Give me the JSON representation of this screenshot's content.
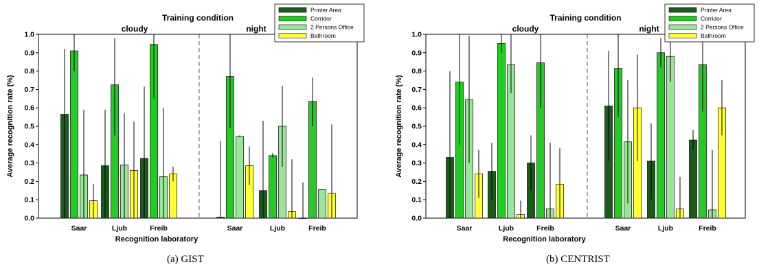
{
  "chart_data": [
    {
      "type": "bar",
      "title": "Training condition",
      "xlabel": "Recognition laboratory",
      "ylabel": "Average recognition rate (%)",
      "ylim": [
        0,
        1.0
      ],
      "yticks": [
        "0.0",
        "0.1",
        "0.2",
        "0.3",
        "0.4",
        "0.5",
        "0.6",
        "0.7",
        "0.8",
        "0.9",
        "1.0"
      ],
      "groups": [
        "cloudy",
        "night"
      ],
      "categories": [
        "Saar",
        "Ljub",
        "Freib",
        "Saar",
        "Ljub",
        "Freib"
      ],
      "legend_position": "top-right",
      "series": [
        {
          "name": "Printer Area",
          "color": "#1a5c1a",
          "values": [
            0.565,
            0.285,
            0.325,
            0.005,
            0.15,
            0.0
          ],
          "errors": [
            [
              0.0,
              0.92
            ],
            [
              0.0,
              0.59
            ],
            [
              0.0,
              0.715
            ],
            [
              0.0,
              0.42
            ],
            [
              0.0,
              0.53
            ],
            [
              0.0,
              0.195
            ]
          ]
        },
        {
          "name": "Corridor",
          "color": "#22cc22",
          "values": [
            0.91,
            0.725,
            0.945,
            0.77,
            0.34,
            0.635
          ],
          "errors": [
            [
              0.8,
              1.0
            ],
            [
              0.45,
              0.98
            ],
            [
              0.65,
              1.0
            ],
            [
              0.49,
              1.0
            ],
            [
              0.33,
              0.355
            ],
            [
              0.5,
              0.765
            ]
          ]
        },
        {
          "name": "2 Persons Office",
          "color": "#99e699",
          "values": [
            0.235,
            0.29,
            0.225,
            0.445,
            0.5,
            0.155
          ],
          "errors": [
            [
              0.0,
              0.59
            ],
            [
              0.0,
              0.57
            ],
            [
              0.0,
              0.6
            ],
            [
              0.44,
              0.45
            ],
            [
              0.28,
              0.72
            ],
            [
              0.155,
              0.155
            ]
          ]
        },
        {
          "name": "Bathroom",
          "color": "#ffff33",
          "values": [
            0.095,
            0.26,
            0.24,
            0.285,
            0.035,
            0.135
          ],
          "errors": [
            [
              0.0,
              0.185
            ],
            [
              0.0,
              0.525
            ],
            [
              0.2,
              0.28
            ],
            [
              0.18,
              0.39
            ],
            [
              0.0,
              0.32
            ],
            [
              0.0,
              0.51
            ]
          ]
        }
      ],
      "caption": "(a)  GIST"
    },
    {
      "type": "bar",
      "title": "Training condition",
      "xlabel": "Recognition laboratory",
      "ylabel": "Average recognition rate (%)",
      "ylim": [
        0,
        1.0
      ],
      "yticks": [
        "0.0",
        "0.1",
        "0.2",
        "0.3",
        "0.4",
        "0.5",
        "0.6",
        "0.7",
        "0.8",
        "0.9",
        "1.0"
      ],
      "groups": [
        "cloudy",
        "night"
      ],
      "categories": [
        "Saar",
        "Ljub",
        "Freib",
        "Saar",
        "Ljub",
        "Freib"
      ],
      "legend_position": "top-right",
      "series": [
        {
          "name": "Printer Area",
          "color": "#1a5c1a",
          "values": [
            0.33,
            0.255,
            0.3,
            0.61,
            0.31,
            0.425
          ],
          "errors": [
            [
              0.0,
              0.8
            ],
            [
              0.1,
              0.41
            ],
            [
              0.15,
              0.45
            ],
            [
              0.31,
              0.91
            ],
            [
              0.1,
              0.515
            ],
            [
              0.37,
              0.48
            ]
          ]
        },
        {
          "name": "Corridor",
          "color": "#22cc22",
          "values": [
            0.74,
            0.95,
            0.845,
            0.815,
            0.9,
            0.835
          ],
          "errors": [
            [
              0.4,
              1.0
            ],
            [
              0.9,
              1.0
            ],
            [
              0.6,
              1.0
            ],
            [
              0.55,
              1.0
            ],
            [
              0.82,
              0.98
            ],
            [
              0.58,
              1.0
            ]
          ]
        },
        {
          "name": "2 Persons Office",
          "color": "#99e699",
          "values": [
            0.645,
            0.835,
            0.05,
            0.415,
            0.88,
            0.045
          ],
          "errors": [
            [
              0.3,
              0.99
            ],
            [
              0.68,
              1.0
            ],
            [
              0.0,
              0.41
            ],
            [
              0.08,
              0.75
            ],
            [
              0.74,
              1.0
            ],
            [
              0.0,
              0.37
            ]
          ]
        },
        {
          "name": "Bathroom",
          "color": "#ffff33",
          "values": [
            0.24,
            0.02,
            0.185,
            0.6,
            0.05,
            0.6
          ],
          "errors": [
            [
              0.11,
              0.37
            ],
            [
              0.0,
              0.095
            ],
            [
              0.0,
              0.38
            ],
            [
              0.31,
              0.89
            ],
            [
              0.0,
              0.225
            ],
            [
              0.45,
              0.75
            ]
          ]
        }
      ],
      "caption": "(b)  CENTRIST"
    }
  ]
}
